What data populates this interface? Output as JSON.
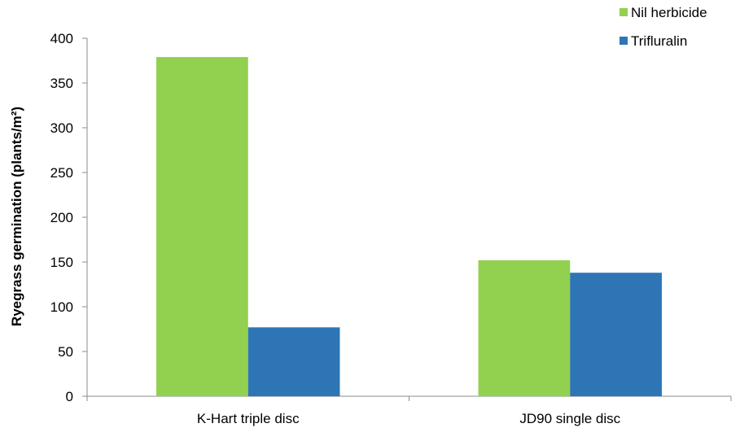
{
  "chart_data": {
    "type": "bar",
    "categories": [
      "K-Hart triple disc",
      "JD90 single disc"
    ],
    "series": [
      {
        "name": "Nil herbicide",
        "values": [
          379,
          152
        ],
        "color": "#92D050"
      },
      {
        "name": "Trifluralin",
        "values": [
          77,
          138
        ],
        "color": "#2E75B6"
      }
    ],
    "title": "",
    "xlabel": "",
    "ylabel": "Ryegrass germination  (plants/m²)",
    "ylim": [
      0,
      400
    ],
    "yticks": [
      0,
      50,
      100,
      150,
      200,
      250,
      300,
      350,
      400
    ],
    "grid": false,
    "legend_position": "top-right"
  }
}
